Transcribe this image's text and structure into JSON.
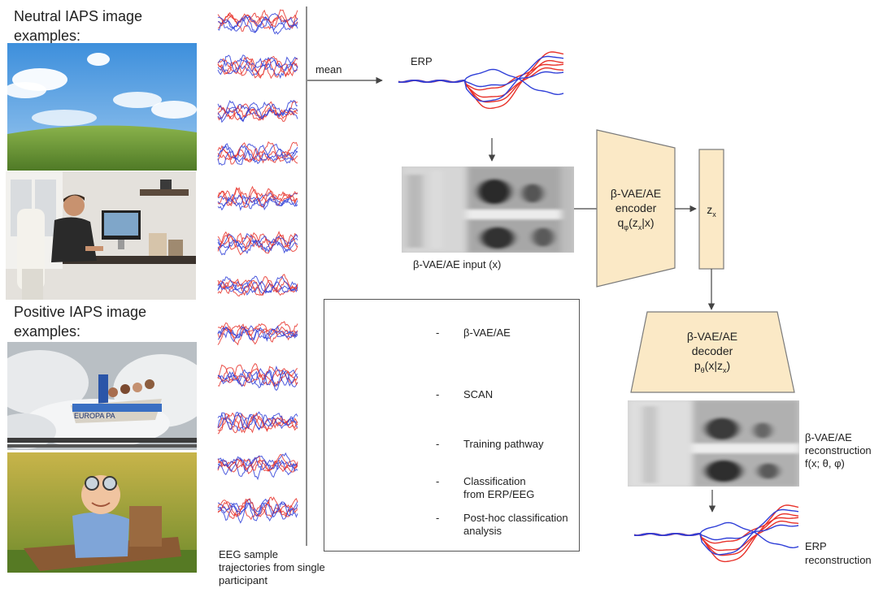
{
  "left_panel": {
    "neutral_title": "Neutral IAPS image\nexamples:",
    "positive_title": "Positive IAPS image\nexamples:",
    "neutral_images": [
      {
        "icon": "sky-meadow-photo"
      },
      {
        "icon": "man-at-computer-photo"
      }
    ],
    "positive_images": [
      {
        "icon": "water-ride-photo",
        "sign_text": "EUROPA PA"
      },
      {
        "icon": "baby-pilot-photo"
      }
    ]
  },
  "eeg": {
    "caption": "EEG sample\ntrajectories from single\nparticipant",
    "trace_count": 12
  },
  "flow": {
    "mean_label": "mean",
    "erp_label": "ERP",
    "input_label": "β-VAE/AE input (x)",
    "encoder": {
      "line1": "β-VAE/AE",
      "line2": "encoder",
      "line3": "q",
      "sub": "φ",
      "arg_open": "(z",
      "arg_sub": "x",
      "arg_close": "|x)"
    },
    "latent": {
      "main": "z",
      "sub": "x"
    },
    "decoder": {
      "line1": "β-VAE/AE",
      "line2": "decoder",
      "line3": "p",
      "sub": "θ",
      "arg_open": "(x|z",
      "arg_sub": "x",
      "arg_close": ")"
    },
    "recon_label": "β-VAE/AE\nreconstruction\nf(x; θ, φ)",
    "erp_recon_label": "ERP\nreconstruction"
  },
  "legend": {
    "items": [
      {
        "dash": "-",
        "label": "β-VAE/AE",
        "icon": "vae-shape-icon"
      },
      {
        "dash": "-",
        "label": "SCAN",
        "icon": "scan-shape-icon"
      },
      {
        "dash": "-",
        "label": "Training pathway",
        "icon": "black-arrow-icon"
      },
      {
        "dash": "-",
        "label": "Classification\nfrom ERP/EEG",
        "icon": "red-arrow-icon"
      },
      {
        "dash": "-",
        "label": "Post-hoc classification\nanalysis",
        "icon": "purple-arrow-icon"
      }
    ]
  },
  "colors": {
    "vae_fill": "#fbe9c6",
    "vae_stroke": "#7a7a7a",
    "scan_fill": "#eeeeee",
    "arrow_dark": "#444444",
    "arrow_red": "#ee3a1f",
    "arrow_purple": "#a64dff",
    "trace_red": "#e8322a",
    "trace_blue": "#2f3fd8"
  }
}
